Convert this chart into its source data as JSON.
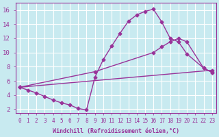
{
  "background_color": "#c8eaf0",
  "grid_color": "#ffffff",
  "line_color": "#993399",
  "xlabel": "Windchill (Refroidissement éolien,°C)",
  "xlim": [
    -0.5,
    23.5
  ],
  "ylim": [
    1.5,
    17
  ],
  "xticks": [
    0,
    1,
    2,
    3,
    4,
    5,
    6,
    7,
    8,
    9,
    10,
    11,
    12,
    13,
    14,
    15,
    16,
    17,
    18,
    19,
    20,
    21,
    22,
    23
  ],
  "yticks": [
    2,
    4,
    6,
    8,
    10,
    12,
    14,
    16
  ],
  "line1_x": [
    0,
    1,
    2,
    3,
    4,
    5,
    6,
    7,
    8,
    9,
    10,
    11,
    12,
    13,
    14,
    15,
    16,
    17,
    18,
    19,
    20,
    22,
    23
  ],
  "line1_y": [
    5.1,
    4.7,
    4.3,
    3.8,
    3.3,
    2.9,
    2.6,
    2.1,
    1.9,
    6.5,
    9.0,
    10.9,
    12.7,
    14.4,
    15.3,
    15.8,
    16.1,
    14.3,
    12.0,
    11.5,
    9.8,
    7.8,
    7.2
  ],
  "line2_x": [
    0,
    9,
    16,
    17,
    18,
    19,
    20,
    22,
    23
  ],
  "line2_y": [
    5.1,
    7.3,
    10.0,
    10.8,
    11.5,
    12.0,
    11.5,
    7.8,
    7.2
  ],
  "line3_x": [
    0,
    23
  ],
  "line3_y": [
    5.1,
    7.5
  ],
  "marker": "D",
  "markersize": 2.5,
  "linewidth": 1.0
}
